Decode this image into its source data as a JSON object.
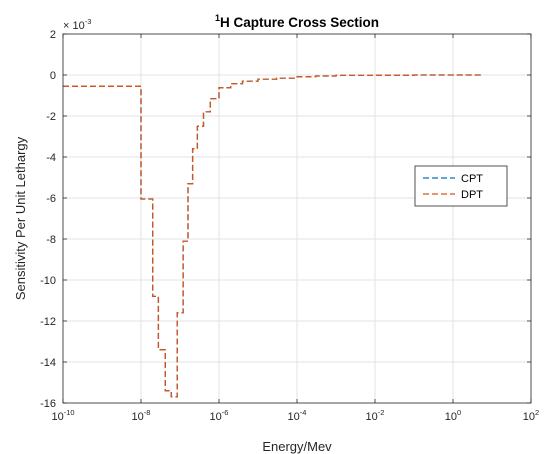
{
  "chart_data": {
    "type": "line",
    "title": {
      "superscript": "1",
      "main": "H Capture Cross Section"
    },
    "xlabel": "Energy/Mev",
    "ylabel": "Sensitivity Per Unit Lethargy",
    "y_multiplier": {
      "base": "× 10",
      "exponent": "-3"
    },
    "x_scale": "log",
    "xlim": [
      1e-10,
      100
    ],
    "ylim": [
      -16,
      2
    ],
    "x_ticks": [
      {
        "base": "10",
        "exp": "-10",
        "value": 1e-10
      },
      {
        "base": "10",
        "exp": "-8",
        "value": 1e-08
      },
      {
        "base": "10",
        "exp": "-6",
        "value": 1e-06
      },
      {
        "base": "10",
        "exp": "-4",
        "value": 0.0001
      },
      {
        "base": "10",
        "exp": "-2",
        "value": 0.01
      },
      {
        "base": "10",
        "exp": "0",
        "value": 1
      },
      {
        "base": "10",
        "exp": "2",
        "value": 100
      }
    ],
    "y_ticks": [
      {
        "label": "2",
        "value": 2
      },
      {
        "label": "0",
        "value": 0
      },
      {
        "label": "-2",
        "value": -2
      },
      {
        "label": "-4",
        "value": -4
      },
      {
        "label": "-6",
        "value": -6
      },
      {
        "label": "-8",
        "value": -8
      },
      {
        "label": "-10",
        "value": -10
      },
      {
        "label": "-12",
        "value": -12
      },
      {
        "label": "-14",
        "value": -14
      },
      {
        "label": "-16",
        "value": -16
      }
    ],
    "grid": true,
    "legend_position": "right",
    "step_boundaries": [
      1e-10,
      1e-08,
      2e-08,
      2.8e-08,
      4.2e-08,
      6e-08,
      8.5e-08,
      1.2e-07,
      1.6e-07,
      2.1e-07,
      2.8e-07,
      4e-07,
      6e-07,
      1e-06,
      2e-06,
      4e-06,
      1e-05,
      3e-05,
      0.0001,
      0.0003,
      0.001,
      0.01,
      0.1,
      1,
      6
    ],
    "series": [
      {
        "name": "CPT",
        "color": "#0072bd",
        "values": [
          -0.55,
          -6.05,
          -10.8,
          -13.4,
          -15.4,
          -15.7,
          -11.6,
          -8.1,
          -5.3,
          -3.6,
          -2.5,
          -1.8,
          -1.15,
          -0.62,
          -0.42,
          -0.3,
          -0.2,
          -0.15,
          -0.09,
          -0.05,
          -0.02,
          -0.01,
          0.0,
          0.0
        ]
      },
      {
        "name": "DPT",
        "color": "#d95319",
        "values": [
          -0.55,
          -6.05,
          -10.8,
          -13.4,
          -15.4,
          -15.7,
          -11.6,
          -8.1,
          -5.3,
          -3.6,
          -2.5,
          -1.8,
          -1.15,
          -0.62,
          -0.42,
          -0.3,
          -0.2,
          -0.15,
          -0.09,
          -0.05,
          -0.02,
          -0.01,
          0.0,
          0.0
        ]
      }
    ]
  }
}
